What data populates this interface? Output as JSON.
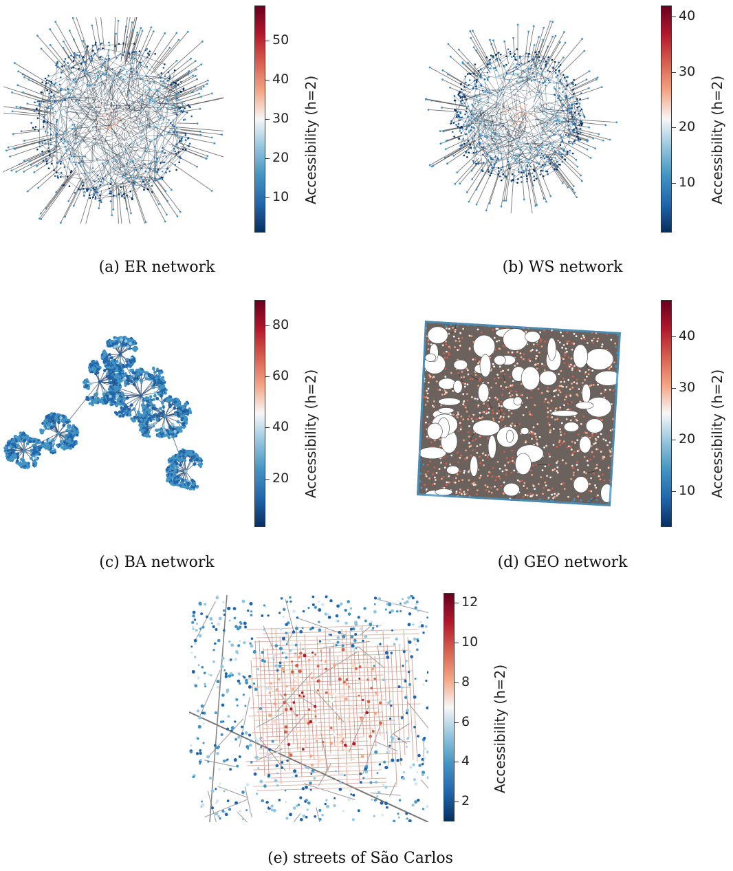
{
  "colorbar_label": "Accessibility (h=2)",
  "colormap": "RdBu_r",
  "colors": {
    "low": "#053061",
    "mid": "#f7f7f7",
    "high": "#67001f",
    "edge": "#3a3a3a"
  },
  "panels": [
    {
      "id": "a",
      "caption": "(a) ER network",
      "network": "ER",
      "colorbar": {
        "min": 1,
        "max": 59,
        "ticks": [
          "10",
          "20",
          "30",
          "40",
          "50"
        ],
        "tick_values": [
          10,
          20,
          30,
          40,
          50
        ]
      }
    },
    {
      "id": "b",
      "caption": "(b) WS network",
      "network": "WS",
      "colorbar": {
        "min": 1,
        "max": 42,
        "ticks": [
          "10",
          "20",
          "30",
          "40"
        ],
        "tick_values": [
          10,
          20,
          30,
          40
        ]
      }
    },
    {
      "id": "c",
      "caption": "(c) BA network",
      "network": "BA",
      "colorbar": {
        "min": 1,
        "max": 90,
        "ticks": [
          "20",
          "40",
          "60",
          "80"
        ],
        "tick_values": [
          20,
          40,
          60,
          80
        ]
      }
    },
    {
      "id": "d",
      "caption": "(d) GEO network",
      "network": "GEO",
      "colorbar": {
        "min": 3,
        "max": 47,
        "ticks": [
          "10",
          "20",
          "30",
          "40"
        ],
        "tick_values": [
          10,
          20,
          30,
          40
        ]
      }
    },
    {
      "id": "e",
      "caption": "(e) streets of São Carlos",
      "network": "streets",
      "colorbar": {
        "min": 1,
        "max": 12.5,
        "ticks": [
          "2",
          "4",
          "6",
          "8",
          "10",
          "12"
        ],
        "tick_values": [
          2,
          4,
          6,
          8,
          10,
          12
        ]
      }
    }
  ]
}
